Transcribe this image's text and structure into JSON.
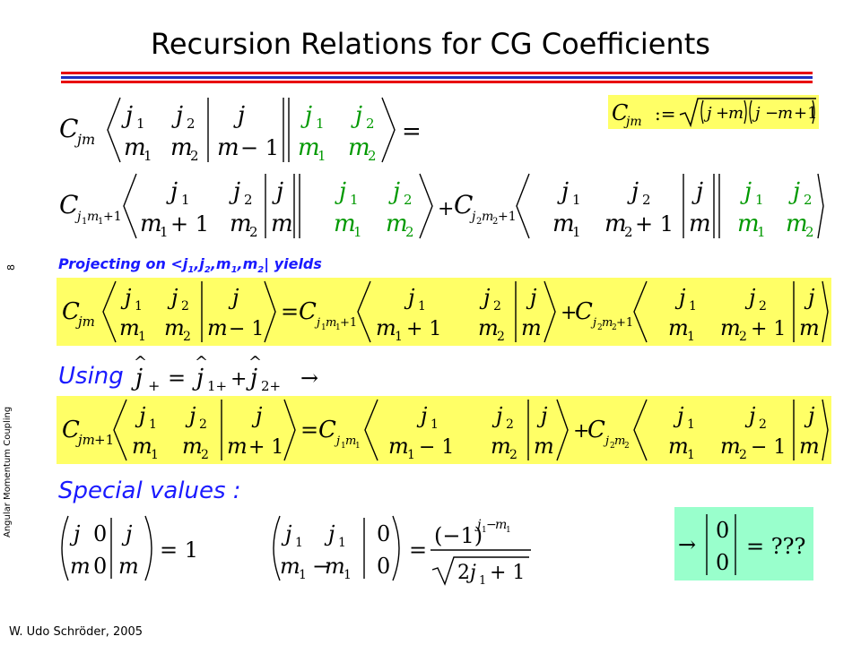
{
  "title": "Recursion Relations for CG Coefficients",
  "sidebar": {
    "page_number": "8",
    "topic": "Angular Momentum Coupling"
  },
  "footer": {
    "author": "W. Udo Schröder, 2005"
  },
  "captions": {
    "projecting_prefix": "Projecting on <j",
    "projecting_suffix": "| yields",
    "using": "Using",
    "special_values": "Special values :"
  },
  "colors": {
    "title_rule_red": "#e8000b",
    "title_rule_blue": "#1f2fbf",
    "highlight_yellow": "#ffff66",
    "highlight_mint": "#99ffcc",
    "caption_blue": "#1a1aff",
    "green_term": "#009900"
  },
  "equations": {
    "definition": "C_jm := sqrt((j+m)(j-m+1))",
    "eq1_lhs": "C_jm <j1 j2 | j ; m1 m2 | m-1 | j1 j2 ; m1 m2> =",
    "eq1_rhs": "C_j1m1+1 <j1 j2 | j ; m1+1 m2 | m | j1 j2 ; m1 m2> + C_j2m2+1 <j1 j2 | j ; m1 m2+1 | m | j1 j2 ; m1 m2>",
    "eq_projected": "C_jm <j1 j2 | j ; m1 m2 | m-1> = C_j1m1+1 <j1 j2 | j ; m1+1 m2 | m> + C_j2m2+1 <j1 j2 | j ; m1 m2+1 | m>",
    "using_relation": "ĵ+ = ĵ1+ + ĵ2+ →",
    "eq_raising": "C_jm+1 <j1 j2 | j ; m1 m2 | m+1> = C_j1m1 <j1 j2 | j ; m1-1 m2 | m> + C_j2m2 <j1 j2 | j ; m1 m2-1 | m>",
    "special1": "(j 0 j ; m 0 m) = 1",
    "special2": "(j1 j1 0 ; m1 -m1 0) = (-1)^(j1-m1) / sqrt(2 j1 + 1)",
    "special3": "→ (0 ; 0) = ???"
  }
}
